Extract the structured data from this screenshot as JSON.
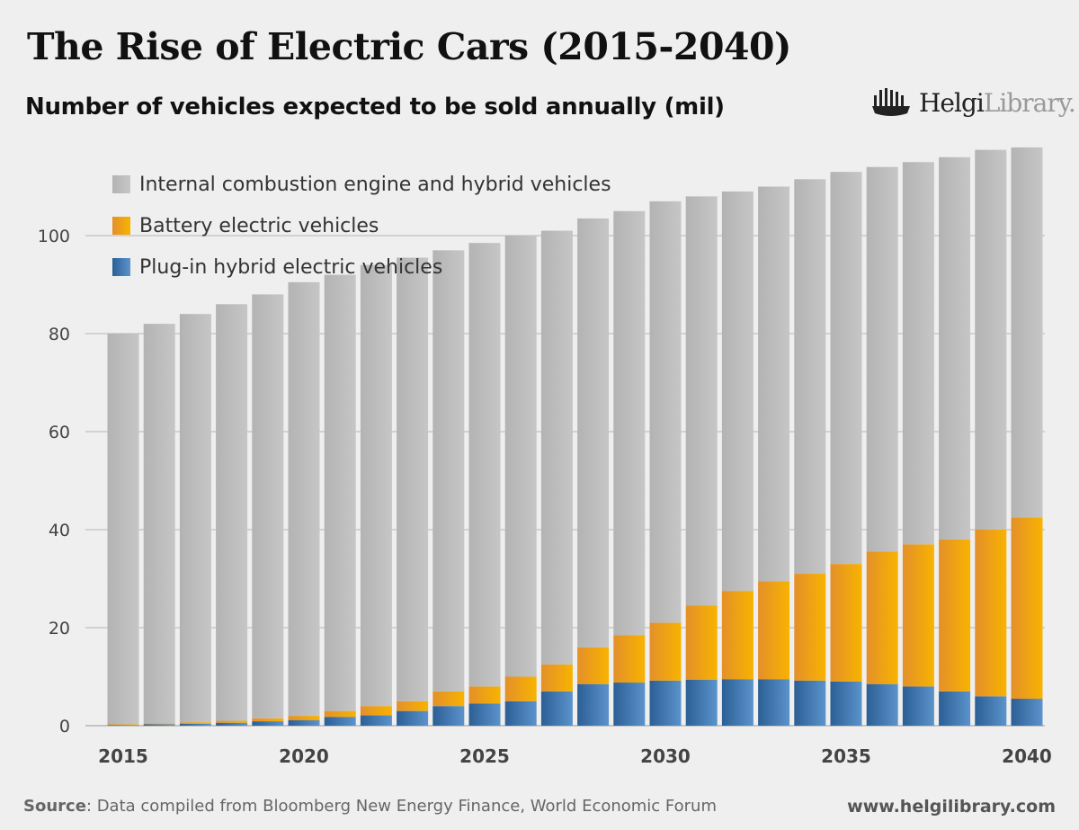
{
  "title": "The Rise of Electric Cars (2015-2040)",
  "subtitle": "Number of vehicles expected to be sold annually (mil)",
  "logo": {
    "bold": "Helgi",
    "light": "Library."
  },
  "footer": {
    "source_label": "Source",
    "source_text": ": Data compiled from Bloomberg New Energy Finance, World Economic Forum",
    "url": "www.helgilibrary.com"
  },
  "chart_data": {
    "type": "bar",
    "stacked": true,
    "title": "Number of vehicles expected to be sold annually (mil)",
    "xlabel": "",
    "ylabel": "",
    "ylim": [
      0,
      120
    ],
    "yticks": [
      0,
      20,
      40,
      60,
      80,
      100
    ],
    "xtick_labels": [
      "2015",
      "2020",
      "2025",
      "2030",
      "2035",
      "2040"
    ],
    "grid": true,
    "legend": "top-left",
    "categories": [
      2015,
      2016,
      2017,
      2018,
      2019,
      2020,
      2021,
      2022,
      2023,
      2024,
      2025,
      2026,
      2027,
      2028,
      2029,
      2030,
      2031,
      2032,
      2033,
      2034,
      2035,
      2036,
      2037,
      2038,
      2039,
      2040
    ],
    "series": [
      {
        "name": "Plug-in hybrid electric vehicles",
        "color": "#3f78b5",
        "values": [
          0.1,
          0.3,
          0.4,
          0.6,
          0.9,
          1.1,
          1.8,
          2.1,
          3.0,
          4.0,
          4.5,
          5.0,
          7.0,
          8.5,
          8.8,
          9.2,
          9.4,
          9.5,
          9.5,
          9.2,
          9.0,
          8.5,
          8.0,
          7.0,
          6.0,
          5.5
        ]
      },
      {
        "name": "Battery electric vehicles",
        "color": "#f2a812",
        "values": [
          0.2,
          0.2,
          0.3,
          0.4,
          0.6,
          0.9,
          1.2,
          1.9,
          2.0,
          3.0,
          3.5,
          5.0,
          5.5,
          7.5,
          9.7,
          11.8,
          15.1,
          18.0,
          20.0,
          21.8,
          24.0,
          27.0,
          29.0,
          31.0,
          34.0,
          37.0
        ]
      },
      {
        "name": "Internal combustion engine and hybrid vehicles",
        "color": "#bdbdbd",
        "values": [
          79.7,
          81.5,
          83.3,
          85.0,
          86.5,
          88.5,
          89.0,
          90.0,
          90.5,
          90.0,
          90.5,
          90.0,
          88.5,
          87.5,
          86.5,
          86.0,
          83.5,
          81.5,
          80.5,
          80.5,
          80.0,
          78.5,
          78.0,
          78.0,
          77.5,
          75.5
        ]
      }
    ]
  }
}
